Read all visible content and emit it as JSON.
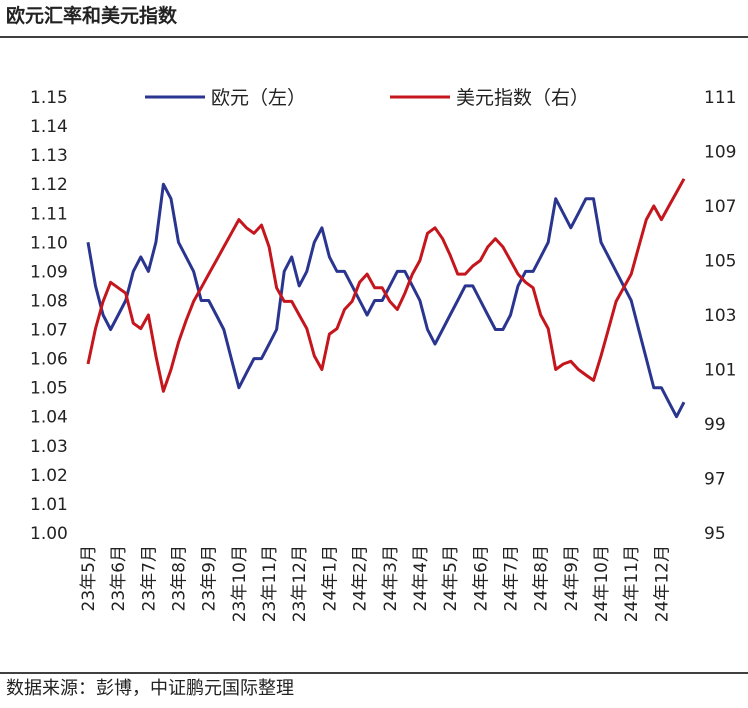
{
  "chart_data": {
    "type": "line",
    "title": "欧元汇率和美元指数",
    "source": "数据来源：彭博，中证鹏元国际整理",
    "categories": [
      "23年5月",
      null,
      null,
      null,
      "23年6月",
      null,
      null,
      null,
      "23年7月",
      null,
      null,
      null,
      "23年8月",
      null,
      null,
      null,
      "23年9月",
      null,
      null,
      null,
      "23年10月",
      null,
      null,
      null,
      "23年11月",
      null,
      null,
      null,
      "23年12月",
      null,
      null,
      null,
      "24年1月",
      null,
      null,
      null,
      "24年2月",
      null,
      null,
      null,
      "24年3月",
      null,
      null,
      null,
      "24年4月",
      null,
      null,
      null,
      "24年5月",
      null,
      null,
      null,
      "24年6月",
      null,
      null,
      null,
      "24年7月",
      null,
      null,
      null,
      "24年8月",
      null,
      null,
      null,
      "24年9月",
      null,
      null,
      null,
      "24年10月",
      null,
      null,
      null,
      "24年11月",
      null,
      null,
      null,
      "24年12月",
      null,
      null,
      null
    ],
    "series": [
      {
        "name": "欧元（左）",
        "color": "#2a3590",
        "axis": "y",
        "values": [
          1.1,
          1.085,
          1.075,
          1.07,
          1.075,
          1.08,
          1.09,
          1.095,
          1.09,
          1.1,
          1.12,
          1.115,
          1.1,
          1.095,
          1.09,
          1.08,
          1.08,
          1.075,
          1.07,
          1.06,
          1.05,
          1.055,
          1.06,
          1.06,
          1.065,
          1.07,
          1.09,
          1.095,
          1.085,
          1.09,
          1.1,
          1.105,
          1.095,
          1.09,
          1.09,
          1.085,
          1.08,
          1.075,
          1.08,
          1.08,
          1.085,
          1.09,
          1.09,
          1.085,
          1.08,
          1.07,
          1.065,
          1.07,
          1.075,
          1.08,
          1.085,
          1.085,
          1.08,
          1.075,
          1.07,
          1.07,
          1.075,
          1.085,
          1.09,
          1.09,
          1.095,
          1.1,
          1.115,
          1.11,
          1.105,
          1.11,
          1.115,
          1.115,
          1.1,
          1.095,
          1.09,
          1.085,
          1.08,
          1.07,
          1.06,
          1.05,
          1.05,
          1.045,
          1.04,
          1.045
        ]
      },
      {
        "name": "美元指数（右）",
        "color": "#c4161c",
        "axis": "y2",
        "values": [
          101.2,
          102.5,
          103.5,
          104.2,
          104.0,
          103.8,
          102.7,
          102.5,
          103.0,
          101.5,
          100.2,
          101.0,
          102.0,
          102.8,
          103.5,
          104.0,
          104.5,
          105.0,
          105.5,
          106.0,
          106.5,
          106.2,
          106.0,
          106.3,
          105.5,
          104.0,
          103.5,
          103.5,
          103.0,
          102.5,
          101.5,
          101.0,
          102.3,
          102.5,
          103.2,
          103.5,
          104.2,
          104.5,
          104.0,
          104.0,
          103.5,
          103.2,
          103.8,
          104.5,
          105.0,
          106.0,
          106.2,
          105.8,
          105.2,
          104.5,
          104.5,
          104.8,
          105.0,
          105.5,
          105.8,
          105.5,
          105.0,
          104.5,
          104.2,
          104.0,
          103.0,
          102.5,
          101.0,
          101.2,
          101.3,
          101.0,
          100.8,
          100.6,
          101.5,
          102.5,
          103.5,
          104.0,
          104.5,
          105.5,
          106.5,
          107.0,
          106.5,
          107.0,
          107.5,
          108.0
        ]
      }
    ],
    "ylim": [
      1.0,
      1.15
    ],
    "yticks": [
      {
        "value": 1.0,
        "label": "1.00"
      },
      1.01,
      1.02,
      1.03,
      1.04,
      1.05,
      1.06,
      1.07,
      1.08,
      1.09,
      {
        "value": 1.1,
        "label": "1.10"
      },
      1.11,
      1.12,
      1.13,
      1.14,
      1.15
    ],
    "y2lim": [
      95,
      111
    ],
    "y2ticks": [
      95,
      97,
      99,
      101,
      103,
      105,
      107,
      109,
      111
    ],
    "legend": "top"
  }
}
